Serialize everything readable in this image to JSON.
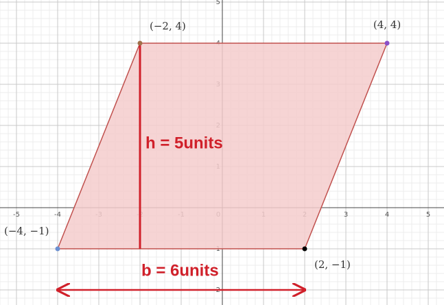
{
  "chart_data": {
    "type": "polygon",
    "x": [
      -4,
      -2,
      4,
      2
    ],
    "y": [
      -1,
      4,
      4,
      -1
    ],
    "point_labels": [
      "(−4, −1)",
      "(−2, 4)",
      "(4, 4)",
      "(2, −1)"
    ],
    "point_colors": [
      "#6b8fd1",
      "#a0704a",
      "#8a4fc8",
      "#000000"
    ],
    "fill": "#f5cccc",
    "stroke": "#c0504d",
    "xlim": [
      -5.4,
      5.383
    ],
    "ylim": [
      -2.367,
      5.05
    ],
    "xticks": [
      -5,
      -4,
      -3,
      -2,
      -1,
      0,
      1,
      2,
      3,
      4,
      5
    ],
    "yticks": [
      -2,
      -1,
      1,
      2,
      3,
      4,
      5
    ],
    "grid": true,
    "annotations": [
      {
        "text": "h = 5units",
        "x1": -2,
        "y1": 4,
        "x2": -2,
        "y2": -1,
        "color": "#d0202a"
      },
      {
        "text": "b = 6units",
        "x1": -4,
        "y1": -2,
        "x2": 2,
        "y2": -2,
        "color": "#d0202a"
      }
    ]
  }
}
